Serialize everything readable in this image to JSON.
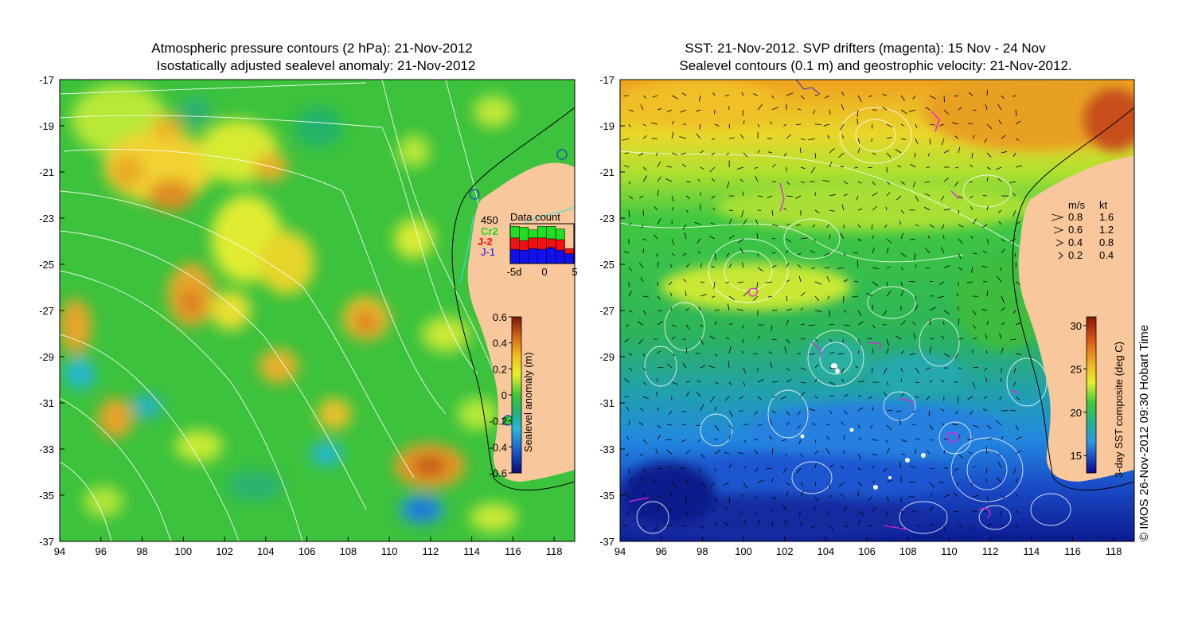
{
  "left_panel": {
    "title_line1": "Atmospheric pressure contours (2 hPa): 21-Nov-2012",
    "title_line2": "Isostatically adjusted sealevel anomaly: 21-Nov-2012",
    "xticks": [
      "94",
      "96",
      "98",
      "100",
      "102",
      "104",
      "106",
      "108",
      "110",
      "112",
      "114",
      "116",
      "118"
    ],
    "yticks": [
      "-17",
      "-19",
      "-21",
      "-23",
      "-25",
      "-27",
      "-29",
      "-31",
      "-33",
      "-35",
      "-37"
    ],
    "colorbar": {
      "label": "Sealevel anomaly (m)",
      "ticks": [
        "0.6",
        "0.4",
        "0.2",
        "0",
        "-0.2",
        "-0.4",
        "-0.6"
      ],
      "range": [
        -0.6,
        0.6
      ]
    },
    "inset": {
      "title": "Data count",
      "max_label": "450",
      "legend": [
        {
          "name": "Cr2",
          "color": "#22dd22"
        },
        {
          "name": "J-2",
          "color": "#ee1111"
        },
        {
          "name": "J-1",
          "color": "#1111ee"
        }
      ],
      "xticks": [
        "-5d",
        "0",
        "5"
      ],
      "bars": [
        {
          "j1": 160,
          "j2": 130,
          "cr2": 130
        },
        {
          "j1": 150,
          "j2": 110,
          "cr2": 150
        },
        {
          "j1": 170,
          "j2": 120,
          "cr2": 90
        },
        {
          "j1": 160,
          "j2": 130,
          "cr2": 130
        },
        {
          "j1": 180,
          "j2": 100,
          "cr2": 140
        },
        {
          "j1": 150,
          "j2": 120,
          "cr2": 120
        },
        {
          "j1": 110,
          "j2": 60,
          "cr2": 0
        }
      ]
    }
  },
  "right_panel": {
    "title_line1": "SST: 21-Nov-2012. SVP drifters (magenta): 15 Nov - 24 Nov",
    "title_line2": "Sealevel contours (0.1 m) and geostrophic velocity: 21-Nov-2012.",
    "xticks": [
      "94",
      "96",
      "98",
      "100",
      "102",
      "104",
      "106",
      "108",
      "110",
      "112",
      "114",
      "116",
      "118"
    ],
    "yticks": [
      "-17",
      "-19",
      "-21",
      "-23",
      "-25",
      "-27",
      "-29",
      "-31",
      "-33",
      "-35",
      "-37"
    ],
    "colorbar": {
      "label": "3-day SST composite (deg C)",
      "ticks": [
        "30",
        "25",
        "20",
        "15"
      ],
      "range": [
        13,
        31
      ]
    },
    "velocity_legend": {
      "header_ms": "m/s",
      "header_kt": "kt",
      "rows": [
        {
          "ms": "0.8",
          "kt": "1.6"
        },
        {
          "ms": "0.6",
          "kt": "1.2"
        },
        {
          "ms": "0.4",
          "kt": "0.8"
        },
        {
          "ms": "0.2",
          "kt": "0.4"
        }
      ]
    }
  },
  "credit": "© IMOS 26-Nov-2012 09:30 Hobart Time"
}
